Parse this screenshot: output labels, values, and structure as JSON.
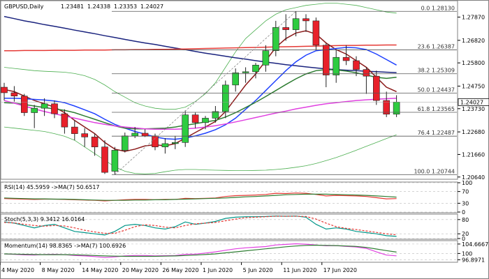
{
  "chart_data": [
    {
      "type": "candlestick",
      "header": {
        "symbol": "GBPUSD,Daily",
        "ohlc": [
          "1.23481",
          "1.24338",
          "1.23353",
          "1.24027"
        ]
      },
      "ylim": [
        1.2057,
        1.2858
      ],
      "yticks": [
        1.2064,
        1.2166,
        1.2268,
        1.2373,
        1.2475,
        1.258,
        1.2682,
        1.2787
      ],
      "current_price": 1.24027,
      "current_price_label": "1.24027",
      "fib_levels": [
        {
          "label": "0.0 1.28130",
          "value": 1.2813
        },
        {
          "label": "23.6 1.26387",
          "value": 1.26387
        },
        {
          "label": "38.2 1.25309",
          "value": 1.25309
        },
        {
          "label": "50.0 1.24437",
          "value": 1.24437
        },
        {
          "label": "61.8 1.23565",
          "value": 1.23565
        },
        {
          "label": "76.4 1.22487",
          "value": 1.22487
        },
        {
          "label": "100.0 1.20744",
          "value": 1.20744
        }
      ],
      "candles": [
        [
          1.247,
          1.249,
          1.241,
          1.2445
        ],
        [
          1.2445,
          1.2475,
          1.2405,
          1.243
        ],
        [
          1.243,
          1.244,
          1.234,
          1.2355
        ],
        [
          1.2355,
          1.239,
          1.2285,
          1.2375
        ],
        [
          1.2375,
          1.242,
          1.234,
          1.2395
        ],
        [
          1.2395,
          1.241,
          1.233,
          1.235
        ],
        [
          1.235,
          1.237,
          1.226,
          1.229
        ],
        [
          1.229,
          1.232,
          1.223,
          1.226
        ],
        [
          1.226,
          1.2285,
          1.22,
          1.2245
        ],
        [
          1.2245,
          1.226,
          1.216,
          1.22
        ],
        [
          1.22,
          1.223,
          1.2078,
          1.2085
        ],
        [
          1.209,
          1.22,
          1.2075,
          1.2185
        ],
        [
          1.2185,
          1.2265,
          1.2175,
          1.225
        ],
        [
          1.225,
          1.229,
          1.224,
          1.2262
        ],
        [
          1.2262,
          1.228,
          1.2245,
          1.225
        ],
        [
          1.225,
          1.226,
          1.2185,
          1.22
        ],
        [
          1.22,
          1.224,
          1.217,
          1.2215
        ],
        [
          1.2215,
          1.225,
          1.219,
          1.222
        ],
        [
          1.222,
          1.2365,
          1.22,
          1.2345
        ],
        [
          1.2345,
          1.2355,
          1.2285,
          1.231
        ],
        [
          1.231,
          1.234,
          1.228,
          1.233
        ],
        [
          1.233,
          1.2385,
          1.231,
          1.236
        ],
        [
          1.236,
          1.25,
          1.233,
          1.248
        ],
        [
          1.248,
          1.2555,
          1.245,
          1.2535
        ],
        [
          1.2535,
          1.256,
          1.249,
          1.254
        ],
        [
          1.254,
          1.258,
          1.251,
          1.257
        ],
        [
          1.257,
          1.266,
          1.254,
          1.2635
        ],
        [
          1.2635,
          1.277,
          1.261,
          1.274
        ],
        [
          1.274,
          1.28,
          1.268,
          1.273
        ],
        [
          1.273,
          1.2813,
          1.27,
          1.278
        ],
        [
          1.278,
          1.28,
          1.272,
          1.277
        ],
        [
          1.277,
          1.2785,
          1.264,
          1.266
        ],
        [
          1.266,
          1.267,
          1.247,
          1.2525
        ],
        [
          1.2525,
          1.264,
          1.249,
          1.2605
        ],
        [
          1.2605,
          1.266,
          1.257,
          1.259
        ],
        [
          1.259,
          1.261,
          1.252,
          1.255
        ],
        [
          1.255,
          1.256,
          1.244,
          1.252
        ],
        [
          1.252,
          1.2545,
          1.239,
          1.241
        ],
        [
          1.241,
          1.245,
          1.2335,
          1.2348
        ],
        [
          1.2348,
          1.2434,
          1.2335,
          1.2403
        ]
      ],
      "overlays": [
        {
          "name": "blue long MA",
          "color": "#1a237e",
          "values": [
            1.279,
            1.278,
            1.277,
            1.2762,
            1.2753,
            1.2745,
            1.2737,
            1.2728,
            1.272,
            1.2712,
            1.2703,
            1.2695,
            1.2686,
            1.2678,
            1.267,
            1.2663,
            1.2655,
            1.2647,
            1.264,
            1.2632,
            1.2624,
            1.2617,
            1.261,
            1.2603,
            1.2597,
            1.259,
            1.2584,
            1.2578,
            1.2572,
            1.2567,
            1.2562,
            1.2557,
            1.2553,
            1.255,
            1.2547,
            1.2545,
            1.2542,
            1.254,
            1.2538,
            1.2536
          ]
        },
        {
          "name": "red long MA",
          "color": "#e53935",
          "values": [
            1.2635,
            1.2635,
            1.2636,
            1.2636,
            1.2636,
            1.2637,
            1.2637,
            1.2637,
            1.2638,
            1.2638,
            1.2638,
            1.2639,
            1.2639,
            1.264,
            1.264,
            1.2641,
            1.2641,
            1.2642,
            1.2643,
            1.2644,
            1.2645,
            1.2646,
            1.2647,
            1.2648,
            1.2649,
            1.265,
            1.2651,
            1.2652,
            1.2653,
            1.2654,
            1.2655,
            1.2656,
            1.2657,
            1.2658,
            1.2659,
            1.2659,
            1.266,
            1.266,
            1.2661,
            1.2661
          ]
        },
        {
          "name": "dark red MA",
          "color": "#8b1a1a",
          "values": [
            1.246,
            1.245,
            1.243,
            1.241,
            1.2395,
            1.238,
            1.2355,
            1.232,
            1.229,
            1.226,
            1.222,
            1.219,
            1.218,
            1.219,
            1.2205,
            1.221,
            1.2205,
            1.2215,
            1.224,
            1.2265,
            1.229,
            1.2315,
            1.236,
            1.242,
            1.248,
            1.253,
            1.259,
            1.265,
            1.269,
            1.2715,
            1.2725,
            1.271,
            1.267,
            1.264,
            1.262,
            1.259,
            1.256,
            1.2515,
            1.247,
            1.245
          ]
        },
        {
          "name": "blue MA",
          "color": "#1e40ff",
          "values": [
            1.242,
            1.242,
            1.2418,
            1.2415,
            1.2412,
            1.2408,
            1.24,
            1.2385,
            1.2368,
            1.235,
            1.2325,
            1.2302,
            1.2285,
            1.227,
            1.2258,
            1.2245,
            1.2237,
            1.2235,
            1.224,
            1.225,
            1.2262,
            1.2278,
            1.23,
            1.233,
            1.237,
            1.241,
            1.2455,
            1.25,
            1.2545,
            1.2585,
            1.2615,
            1.2635,
            1.264,
            1.2645,
            1.265,
            1.2648,
            1.264,
            1.262,
            1.2595,
            1.257
          ]
        },
        {
          "name": "green MA",
          "color": "#2e7d32",
          "values": [
            1.24,
            1.2398,
            1.2392,
            1.2385,
            1.2378,
            1.2372,
            1.2365,
            1.2355,
            1.234,
            1.2325,
            1.231,
            1.2295,
            1.2285,
            1.2282,
            1.2282,
            1.2283,
            1.2285,
            1.229,
            1.2298,
            1.2305,
            1.2313,
            1.232,
            1.2335,
            1.2355,
            1.2378,
            1.2402,
            1.2428,
            1.2455,
            1.2482,
            1.2508,
            1.253,
            1.2545,
            1.255,
            1.2548,
            1.2543,
            1.2535,
            1.2525,
            1.2515,
            1.251,
            1.2515
          ]
        },
        {
          "name": "magenta MA",
          "color": "#e040e0",
          "values": [
            1.241,
            1.2398,
            1.2385,
            1.2372,
            1.236,
            1.235,
            1.234,
            1.233,
            1.232,
            1.231,
            1.2302,
            1.2295,
            1.229,
            1.2286,
            1.2282,
            1.228,
            1.228,
            1.228,
            1.2282,
            1.2285,
            1.229,
            1.2296,
            1.2304,
            1.2313,
            1.2323,
            1.2333,
            1.2343,
            1.2353,
            1.2362,
            1.2372,
            1.238,
            1.2388,
            1.2395,
            1.24,
            1.2405,
            1.241,
            1.2413,
            1.2416,
            1.2418,
            1.242
          ]
        },
        {
          "name": "bollinger upper",
          "color": "#4caf50",
          "values": [
            1.256,
            1.2555,
            1.255,
            1.2545,
            1.2542,
            1.254,
            1.2538,
            1.2532,
            1.2522,
            1.2505,
            1.248,
            1.245,
            1.2425,
            1.24,
            1.2385,
            1.2375,
            1.237,
            1.237,
            1.238,
            1.2405,
            1.244,
            1.249,
            1.256,
            1.263,
            1.269,
            1.273,
            1.277,
            1.28,
            1.282,
            1.283,
            1.284,
            1.2845,
            1.285,
            1.285,
            1.2845,
            1.284,
            1.283,
            1.282,
            1.281,
            1.2805
          ]
        },
        {
          "name": "bollinger lower",
          "color": "#4caf50",
          "values": [
            1.229,
            1.2285,
            1.228,
            1.2275,
            1.227,
            1.226,
            1.2248,
            1.223,
            1.22,
            1.217,
            1.214,
            1.211,
            1.209,
            1.208,
            1.2078,
            1.208,
            1.2088,
            1.2095,
            1.2098,
            1.2098,
            1.2096,
            1.2095,
            1.2094,
            1.2093,
            1.2093,
            1.2094,
            1.2095,
            1.2098,
            1.2102,
            1.2108,
            1.2115,
            1.2125,
            1.2138,
            1.2152,
            1.2168,
            1.2185,
            1.2203,
            1.222,
            1.2238,
            1.2255
          ]
        }
      ],
      "xtick_labels": [
        "4 May 2020",
        "8 May 2020",
        "14 May 2020",
        "20 May 2020",
        "26 May 2020",
        "1 Jun 2020",
        "5 Jun 2020",
        "11 Jun 2020",
        "17 Jun 2020"
      ]
    },
    {
      "type": "line",
      "label": "RSI(14) 45.5959  ->MA(7) 50.6517",
      "ylim": [
        0,
        100
      ],
      "yticks_labels": [
        "100",
        "70",
        "30",
        "0"
      ],
      "ytick_values": [
        100,
        70,
        30,
        0
      ],
      "series": [
        {
          "color": "#e53935",
          "values": [
            46,
            45,
            44,
            43,
            44,
            44,
            43,
            42,
            41,
            40,
            38,
            40,
            42,
            43,
            43,
            42,
            43,
            43,
            47,
            46,
            47,
            48,
            53,
            56,
            57,
            58,
            60,
            64,
            63,
            65,
            64,
            60,
            55,
            57,
            56,
            55,
            53,
            49,
            45,
            46
          ]
        },
        {
          "color": "#2e7d32",
          "values": [
            48,
            47,
            46,
            45,
            45,
            44,
            44,
            43,
            42,
            41,
            40,
            40,
            40,
            41,
            41,
            42,
            42,
            43,
            44,
            45,
            46,
            47,
            48,
            50,
            52,
            53,
            55,
            57,
            59,
            60,
            61,
            61,
            61,
            60,
            59,
            58,
            57,
            55,
            53,
            51
          ]
        }
      ]
    },
    {
      "type": "line",
      "label": "Stoch(5,3,3) 9.3412 16.0164",
      "ylim": [
        0,
        100
      ],
      "yticks_labels": [
        "80",
        "20",
        "0"
      ],
      "ytick_values": [
        80,
        20,
        0
      ],
      "series": [
        {
          "color": "#009688",
          "values": [
            70,
            65,
            55,
            45,
            55,
            60,
            45,
            30,
            25,
            20,
            15,
            30,
            55,
            60,
            55,
            45,
            40,
            50,
            70,
            60,
            65,
            72,
            85,
            90,
            92,
            92,
            93,
            95,
            94,
            95,
            90,
            60,
            40,
            45,
            40,
            30,
            25,
            20,
            12,
            9
          ]
        },
        {
          "color": "#e53935",
          "dashed": true,
          "values": [
            68,
            66,
            60,
            55,
            52,
            55,
            53,
            45,
            35,
            28,
            22,
            22,
            35,
            50,
            58,
            55,
            48,
            45,
            55,
            62,
            65,
            68,
            75,
            82,
            88,
            90,
            92,
            94,
            94,
            94,
            93,
            82,
            65,
            50,
            43,
            38,
            32,
            26,
            20,
            16
          ]
        }
      ]
    },
    {
      "type": "line",
      "label": "Momentum(14) 98.8365  ->MA(7) 100.6926",
      "ylim": [
        96.0,
        106.0
      ],
      "yticks_labels": [
        "104.6667",
        "100",
        "96.8971"
      ],
      "ytick_values": [
        104.6667,
        100,
        96.8971
      ],
      "series": [
        {
          "color": "#e040e0",
          "values": [
            99.8,
            99.6,
            99.3,
            99.2,
            99.5,
            99.6,
            99.4,
            99.0,
            98.8,
            98.5,
            98.0,
            98.3,
            98.8,
            99.0,
            99.0,
            98.8,
            98.9,
            99.0,
            99.6,
            99.7,
            100.2,
            100.8,
            101.6,
            102.3,
            102.8,
            103.1,
            103.4,
            104.2,
            104.5,
            104.8,
            104.6,
            104.2,
            103.8,
            103.9,
            103.5,
            103.2,
            102.5,
            100.8,
            99.2,
            98.84
          ]
        },
        {
          "color": "#2e7d32",
          "values": [
            99.8,
            99.7,
            99.6,
            99.5,
            99.4,
            99.4,
            99.4,
            99.3,
            99.2,
            99.0,
            98.8,
            98.7,
            98.6,
            98.6,
            98.6,
            98.6,
            98.7,
            98.8,
            99.0,
            99.2,
            99.5,
            99.8,
            100.3,
            100.8,
            101.3,
            101.8,
            102.3,
            102.8,
            103.3,
            103.7,
            104.0,
            104.1,
            104.0,
            103.9,
            103.7,
            103.5,
            103.0,
            102.2,
            101.4,
            100.69
          ]
        }
      ]
    }
  ]
}
